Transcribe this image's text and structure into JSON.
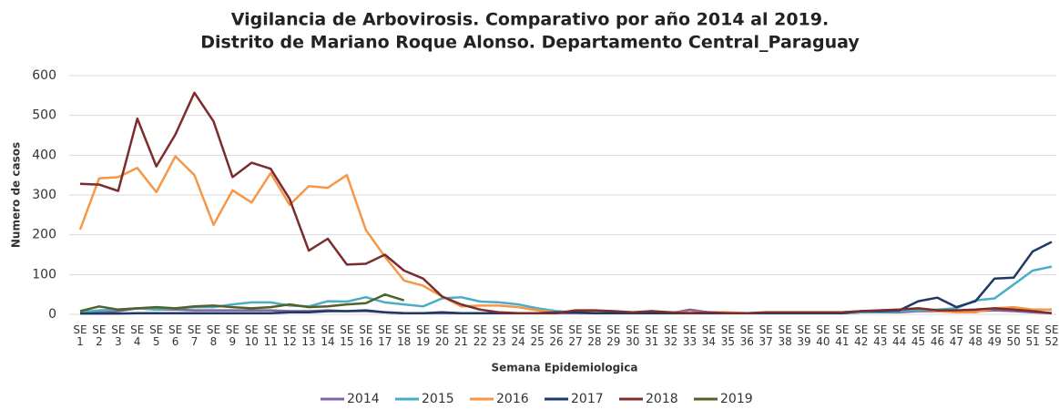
{
  "chart_data": {
    "type": "line",
    "title": [
      "Vigilancia de Arbovirosis. Comparativo por año 2014 al 2019.",
      "Distrito de Mariano Roque Alonso. Departamento Central_Paraguay"
    ],
    "y_label": "Numero de casos",
    "x_label": "Semana Epidemiologica",
    "categories": [
      "SE 1",
      "SE 2",
      "SE 3",
      "SE 4",
      "SE 5",
      "SE 6",
      "SE 7",
      "SE 8",
      "SE 9",
      "SE 10",
      "SE 11",
      "SE 12",
      "SE 13",
      "SE 14",
      "SE 15",
      "SE 16",
      "SE 17",
      "SE 18",
      "SE 19",
      "SE 20",
      "SE 21",
      "SE 22",
      "SE 23",
      "SE 24",
      "SE 25",
      "SE 26",
      "SE 27",
      "SE 28",
      "SE 29",
      "SE 30",
      "SE 31",
      "SE 32",
      "SE 33",
      "SE 34",
      "SE 35",
      "SE 36",
      "SE 37",
      "SE 38",
      "SE 39",
      "SE 40",
      "SE 41",
      "SE 42",
      "SE 43",
      "SE 44",
      "SE 45",
      "SE 46",
      "SE 47",
      "SE 48",
      "SE 49",
      "SE 50",
      "SE 51",
      "SE 52"
    ],
    "series": [
      {
        "name": "2014",
        "color": "#8064a2",
        "values": [
          3,
          5,
          8,
          15,
          12,
          12,
          10,
          10,
          10,
          10,
          10,
          8,
          8,
          10,
          8,
          8,
          5,
          3,
          3,
          3,
          3,
          3,
          3,
          3,
          3,
          3,
          3,
          3,
          3,
          3,
          8,
          3,
          12,
          5,
          3,
          3,
          3,
          3,
          3,
          3,
          3,
          5,
          5,
          5,
          8,
          8,
          8,
          8,
          10,
          8,
          5,
          3
        ]
      },
      {
        "name": "2015",
        "color": "#4bacc6",
        "values": [
          5,
          10,
          12,
          15,
          12,
          15,
          18,
          18,
          25,
          30,
          30,
          22,
          20,
          33,
          32,
          43,
          30,
          25,
          20,
          40,
          43,
          32,
          30,
          25,
          15,
          8,
          5,
          5,
          5,
          5,
          5,
          5,
          5,
          3,
          3,
          3,
          3,
          3,
          3,
          3,
          3,
          5,
          5,
          8,
          10,
          12,
          15,
          35,
          40,
          75,
          110,
          120
        ]
      },
      {
        "name": "2016",
        "color": "#f79646",
        "values": [
          213,
          342,
          345,
          368,
          307,
          397,
          350,
          225,
          312,
          281,
          355,
          275,
          322,
          318,
          350,
          212,
          145,
          85,
          72,
          45,
          20,
          22,
          22,
          18,
          10,
          5,
          5,
          5,
          5,
          5,
          5,
          5,
          5,
          5,
          5,
          3,
          3,
          3,
          3,
          3,
          5,
          8,
          10,
          12,
          15,
          8,
          5,
          5,
          15,
          18,
          12,
          12
        ]
      },
      {
        "name": "2017",
        "color": "#1f3864",
        "values": [
          2,
          2,
          2,
          3,
          3,
          3,
          3,
          3,
          3,
          3,
          3,
          5,
          5,
          8,
          8,
          10,
          5,
          3,
          3,
          5,
          3,
          3,
          3,
          3,
          3,
          5,
          5,
          3,
          3,
          3,
          3,
          3,
          3,
          3,
          3,
          3,
          3,
          3,
          3,
          3,
          3,
          8,
          8,
          10,
          33,
          42,
          18,
          33,
          90,
          92,
          158,
          182
        ]
      },
      {
        "name": "2018",
        "color": "#7b2c2c",
        "values": [
          328,
          326,
          310,
          492,
          372,
          452,
          557,
          485,
          345,
          381,
          366,
          290,
          160,
          190,
          125,
          127,
          150,
          110,
          90,
          45,
          25,
          12,
          5,
          3,
          3,
          3,
          10,
          10,
          8,
          5,
          8,
          5,
          3,
          5,
          3,
          3,
          5,
          5,
          5,
          5,
          5,
          8,
          10,
          12,
          15,
          10,
          10,
          12,
          15,
          12,
          8,
          3
        ]
      },
      {
        "name": "2019",
        "color": "#4f6228",
        "values": [
          8,
          20,
          12,
          15,
          18,
          15,
          20,
          22,
          18,
          15,
          18,
          25,
          18,
          20,
          25,
          28,
          50,
          35,
          null,
          null,
          null,
          null,
          null,
          null,
          null,
          null,
          null,
          null,
          null,
          null,
          null,
          null,
          null,
          null,
          null,
          null,
          null,
          null,
          null,
          null,
          null,
          null,
          null,
          null,
          null,
          null,
          null,
          null,
          null,
          null,
          null,
          null
        ]
      }
    ],
    "ylim": [
      0,
      600
    ],
    "yticks": [
      0,
      100,
      200,
      300,
      400,
      500,
      600
    ],
    "legend": "bottom"
  }
}
